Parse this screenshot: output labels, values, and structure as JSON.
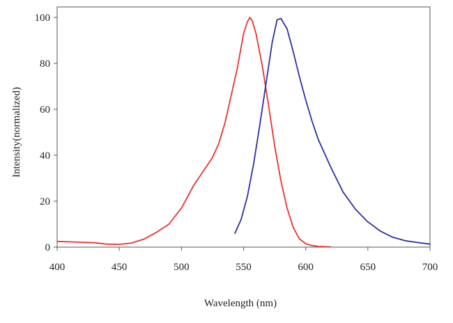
{
  "chart_data": {
    "type": "line",
    "title": "",
    "xlabel": "Wavelength (nm)",
    "ylabel": "Intensity(normalized)",
    "xlim": [
      400,
      700
    ],
    "ylim": [
      0,
      100
    ],
    "xticks": [
      400,
      450,
      500,
      550,
      600,
      650,
      700
    ],
    "yticks": [
      0,
      20,
      40,
      60,
      80,
      100
    ],
    "grid": false,
    "legend": "none",
    "series": [
      {
        "color": "#e8322e",
        "x": [
          400,
          410,
          420,
          430,
          440,
          450,
          460,
          470,
          480,
          490,
          500,
          505,
          510,
          515,
          520,
          525,
          530,
          535,
          540,
          545,
          550,
          553,
          555,
          557,
          560,
          565,
          570,
          575,
          580,
          585,
          590,
          595,
          600,
          605,
          610,
          620
        ],
        "y": [
          2.5,
          2.3,
          2.1,
          1.9,
          1.3,
          1.2,
          1.8,
          3.5,
          6.5,
          10,
          17,
          22,
          27,
          31,
          35,
          39,
          45,
          54,
          66,
          78,
          93,
          98,
          100,
          98.5,
          93,
          79,
          62,
          44,
          29,
          17,
          8.5,
          3.5,
          1.5,
          0.7,
          0.3,
          0.1
        ]
      },
      {
        "color": "#2e2ea8",
        "x": [
          543,
          548,
          553,
          558,
          563,
          568,
          573,
          577,
          580,
          585,
          590,
          595,
          600,
          605,
          610,
          620,
          630,
          640,
          650,
          660,
          670,
          680,
          690,
          700
        ],
        "y": [
          6,
          12,
          22,
          36,
          53,
          71,
          89,
          99,
          99.5,
          95,
          85,
          74,
          64,
          55,
          47,
          35,
          24,
          16.5,
          11,
          7,
          4.3,
          2.8,
          2.0,
          1.3
        ]
      }
    ]
  }
}
